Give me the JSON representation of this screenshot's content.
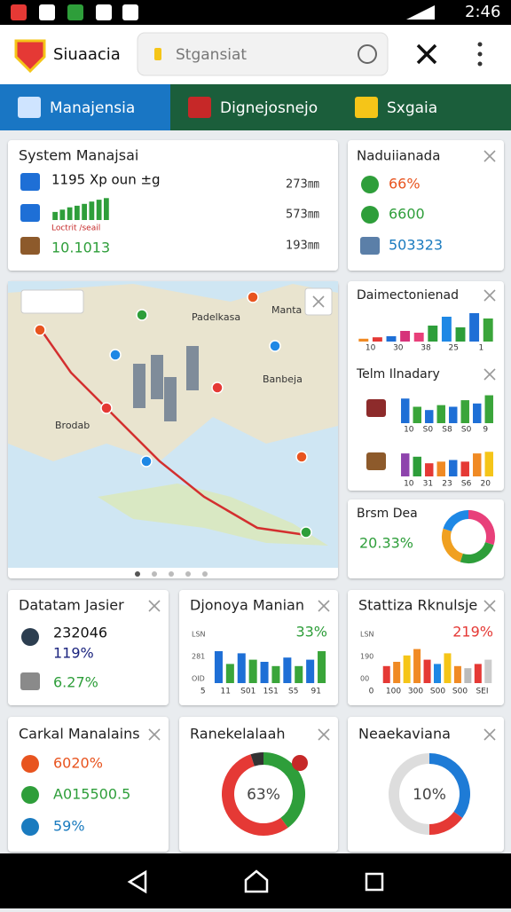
{
  "status_bar": {
    "time": "2:46"
  },
  "header": {
    "title": "Siuaacia",
    "search": "Stgansiat"
  },
  "tabs": [
    "Manajensia",
    "Dignejosnejo",
    "Sxgaia"
  ],
  "system_card": {
    "title": "System Manajsai",
    "row1_label": "1195 Xp oun ±g",
    "row1_value": "273㎜",
    "row2_label": "Loctrit /seail",
    "row2_value": "573㎜",
    "row3_label": "10.1013",
    "row3_value": "193㎜",
    "chart": {
      "values": [
        35,
        45,
        55,
        62,
        70,
        80,
        88,
        95
      ],
      "colors": [
        "#2e9e3a"
      ],
      "ylim": [
        0,
        100
      ]
    }
  },
  "status_card": {
    "title": "Naduiianada",
    "items": [
      "66%",
      "6600",
      "503323"
    ]
  },
  "map": {
    "labels": [
      "Padelkasa",
      "Manta",
      "Banbeja",
      "Brodab"
    ]
  },
  "chart_cards": [
    {
      "title": "Daimectonienad",
      "values": [
        8,
        12,
        15,
        30,
        25,
        45,
        70,
        40,
        80,
        65
      ],
      "colors": [
        "#f08a24",
        "#e53935",
        "#1e6fd6",
        "#d6337a",
        "#e8407a",
        "#2e9e3a",
        "#1e88e5",
        "#2e9e3a",
        "#1e6fd6",
        "#3aa53a"
      ],
      "ylim": [
        0,
        100
      ],
      "x_labels": [
        "10",
        "30",
        "38",
        "25",
        "1"
      ]
    },
    {
      "title": "Telm Ilnadary",
      "values": [
        75,
        50,
        40,
        55,
        50,
        70,
        60,
        85
      ],
      "colors": [
        "#1e6fd6",
        "#3aa53a"
      ],
      "ylim": [
        0,
        100
      ],
      "x_labels": [
        "10",
        "S0",
        "S8",
        "S0",
        "9"
      ]
    },
    {
      "values": [
        70,
        60,
        40,
        45,
        50,
        45,
        70,
        75
      ],
      "colors": [
        "#8e44ad",
        "#2e9e3a",
        "#e53935",
        "#f08a24",
        "#1e6fd6",
        "#e53935",
        "#f08a24",
        "#f5c518"
      ],
      "ylim": [
        0,
        100
      ],
      "x_labels": [
        "10",
        "31",
        "23",
        "S6",
        "20"
      ]
    }
  ],
  "ring_card": {
    "title": "Brsm Dea",
    "value": "20.33%",
    "values": [
      30,
      25,
      25,
      20
    ],
    "colors": [
      "#e8407a",
      "#2e9e3a",
      "#f0a020",
      "#1e88e5"
    ]
  },
  "data_card": {
    "title": "Datatam Jasier",
    "items": [
      "232046",
      "119%",
      "6.27%"
    ]
  },
  "bar_cards": [
    {
      "title": "Djonoya Manian",
      "value": "33%",
      "value_color": "#2e9e3a",
      "axis_labels": [
        "LSN",
        "281",
        "OID"
      ],
      "x_labels": [
        "5",
        "11",
        "S01",
        "1S1",
        "S5",
        "91"
      ],
      "values": [
        75,
        45,
        70,
        55,
        50,
        40,
        60,
        40,
        55,
        75
      ],
      "colors": [
        "#1e6fd6",
        "#3aa53a"
      ],
      "ylim": [
        0,
        100
      ]
    },
    {
      "title": "Stattiza Rknulsje",
      "value": "219%",
      "value_color": "#e53935",
      "axis_labels": [
        "LSN",
        "190",
        "00"
      ],
      "x_labels": [
        "0",
        "100",
        "300",
        "S00",
        "S00",
        "SEI"
      ],
      "values": [
        40,
        50,
        65,
        80,
        55,
        45,
        70,
        40,
        35,
        45,
        55
      ],
      "colors": [
        "#e53935",
        "#f08a24",
        "#f5c518",
        "#f08a24",
        "#e53935",
        "#1e88e5",
        "#f5c518",
        "#f08a24",
        "#bbbbbb",
        "#e53935",
        "#cccccc"
      ],
      "ylim": [
        0,
        100
      ]
    }
  ],
  "control_card": {
    "title": "Carkal Manalains",
    "items": [
      "6020%",
      "A015500.5",
      "59%"
    ]
  },
  "donut_cards": [
    {
      "title": "Ranekelalaah",
      "center": "63%",
      "values": [
        40,
        55,
        5
      ],
      "colors": [
        "#2e9e3a",
        "#e53935",
        "#333333"
      ]
    },
    {
      "title": "Neaekaviana",
      "center": "10%",
      "values": [
        35,
        15,
        50
      ],
      "colors": [
        "#1e7bd6",
        "#e53935",
        "#dddddd"
      ]
    }
  ]
}
